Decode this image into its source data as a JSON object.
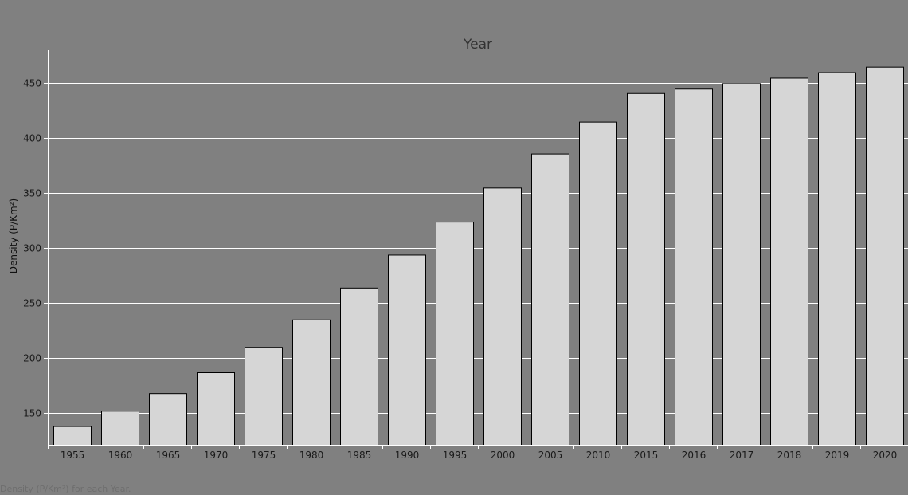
{
  "chart_data": {
    "type": "bar",
    "title": "Year",
    "xlabel": "",
    "ylabel": "Density (P/Km²)",
    "caption": "Density (P/Km²) for each Year.",
    "categories": [
      "1955",
      "1960",
      "1965",
      "1970",
      "1975",
      "1980",
      "1985",
      "1990",
      "1995",
      "2000",
      "2005",
      "2010",
      "2015",
      "2016",
      "2017",
      "2018",
      "2019",
      "2020"
    ],
    "values": [
      138,
      152,
      168,
      187,
      210,
      235,
      264,
      294,
      324,
      355,
      386,
      415,
      441,
      445,
      450,
      455,
      460,
      465
    ],
    "ylim": [
      121,
      480
    ],
    "yticks": [
      150,
      200,
      250,
      300,
      350,
      400,
      450
    ],
    "grid": true,
    "colors": {
      "background": "#808080",
      "bar_fill": "#d6d6d6",
      "bar_stroke": "#000000",
      "grid": "#ffffff",
      "axis": "#ffffff"
    }
  }
}
